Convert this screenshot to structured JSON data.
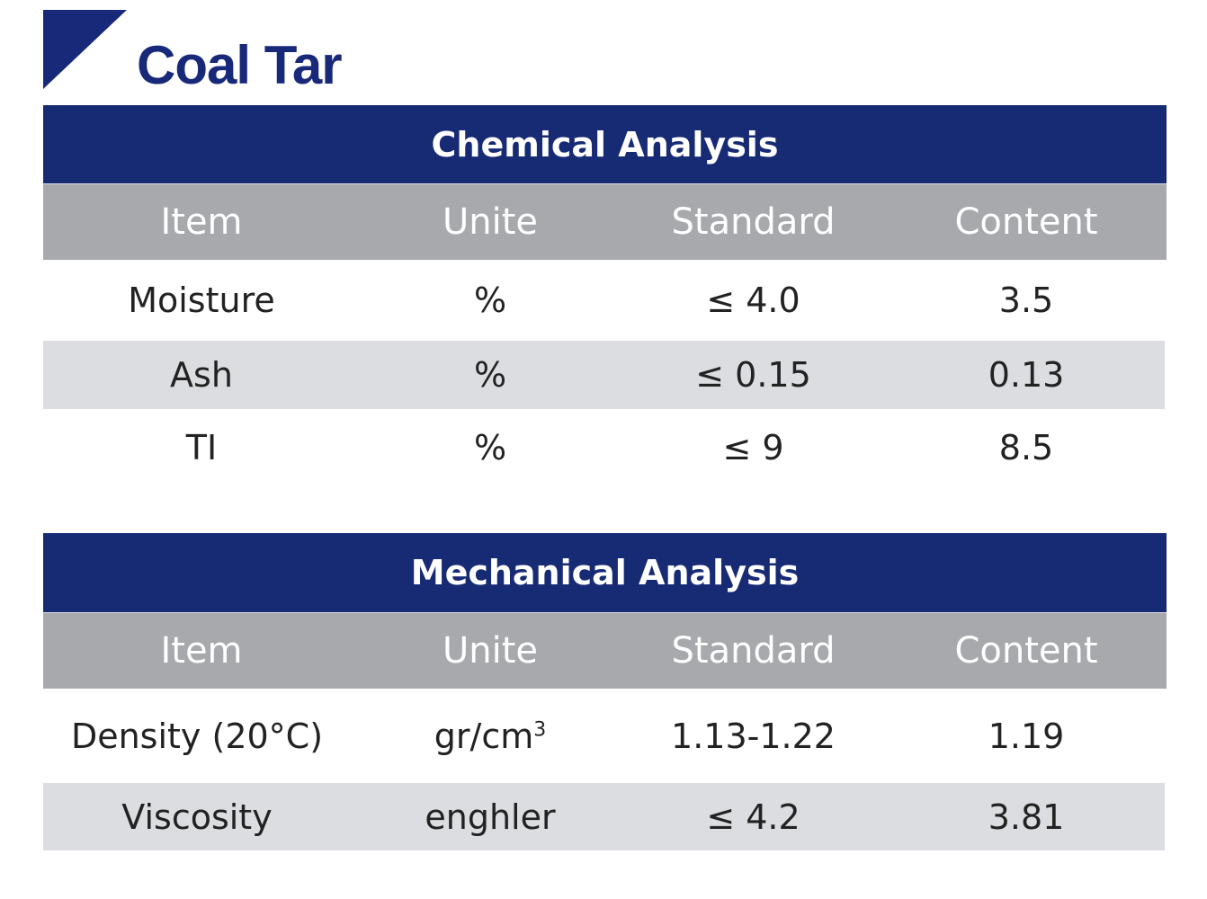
{
  "page": {
    "title": "Coal Tar",
    "brand_color": "#19297a",
    "header_gray": "#a7a9ac",
    "stripe_gray": "#dcdde0"
  },
  "columns": [
    "Item",
    "Unite",
    "Standard",
    "Content"
  ],
  "chemical": {
    "title": "Chemical Analysis",
    "rows": [
      {
        "item": "Moisture",
        "unit": "%",
        "standard": "≤ 4.0",
        "content": "3.5"
      },
      {
        "item": "Ash",
        "unit": "%",
        "standard": "≤ 0.15",
        "content": "0.13"
      },
      {
        "item": "TI",
        "unit": "%",
        "standard": "≤ 9",
        "content": "8.5"
      }
    ]
  },
  "mechanical": {
    "title": "Mechanical Analysis",
    "rows": [
      {
        "item": "Density (20°C)",
        "unit": "gr/cm",
        "unit_sup": "3",
        "standard": "1.13-1.22",
        "content": "1.19"
      },
      {
        "item": "Viscosity",
        "unit": "enghler",
        "standard": "≤ 4.2",
        "content": "3.81"
      }
    ]
  }
}
